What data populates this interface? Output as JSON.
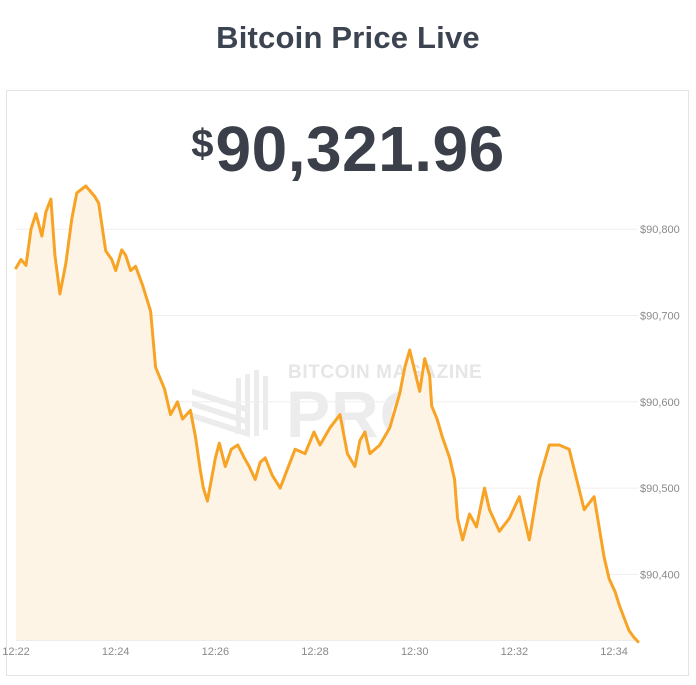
{
  "page": {
    "title": "Bitcoin Price Live"
  },
  "price": {
    "currency_symbol": "$",
    "value": "90,321.96"
  },
  "watermark": {
    "top": "BITCOIN MAGAZINE",
    "main": "PRO"
  },
  "colors": {
    "line": "#f7a325",
    "fill": "#fef4e6",
    "grid": "#efefef",
    "tick_text": "#8a8a8a"
  },
  "chart_data": {
    "type": "area",
    "title": "",
    "xlabel": "",
    "ylabel": "",
    "x_ticks": [
      "12:22",
      "12:24",
      "12:26",
      "12:28",
      "12:30",
      "12:32",
      "12:34"
    ],
    "y_ticks": [
      90400,
      90500,
      90600,
      90700,
      90800
    ],
    "y_tick_labels": [
      "$90,400",
      "$90,500",
      "$90,600",
      "$90,700",
      "$90,800"
    ],
    "xlim_minutes": [
      0,
      12.48
    ],
    "ylim": [
      90324,
      90857
    ],
    "y_axis_position": "right",
    "grid": true,
    "series": [
      {
        "x_minutes": [
          0.0,
          0.1,
          0.2,
          0.3,
          0.4,
          0.52,
          0.6,
          0.7,
          0.78,
          0.88,
          1.0,
          1.12,
          1.22,
          1.4,
          1.58,
          1.66,
          1.8,
          1.92,
          2.0,
          2.12,
          2.2,
          2.3,
          2.4,
          2.54,
          2.7,
          2.8,
          2.98,
          3.1,
          3.24,
          3.34,
          3.5,
          3.6,
          3.7,
          3.76,
          3.84,
          4.0,
          4.08,
          4.2,
          4.32,
          4.45,
          4.58,
          4.68,
          4.8,
          4.9,
          5.0,
          5.14,
          5.3,
          5.4,
          5.6,
          5.8,
          5.98,
          6.1,
          6.3,
          6.5,
          6.65,
          6.8,
          6.9,
          7.0,
          7.1,
          7.3,
          7.5,
          7.7,
          7.8,
          7.9,
          8.1,
          8.2,
          8.3,
          8.34,
          8.45,
          8.55,
          8.7,
          8.8,
          8.86,
          8.96,
          9.1,
          9.24,
          9.4,
          9.5,
          9.7,
          9.9,
          10.1,
          10.3,
          10.5,
          10.7,
          10.9,
          11.1,
          11.4,
          11.6,
          11.8,
          11.9,
          12.02,
          12.1,
          12.2,
          12.3,
          12.4,
          12.48
        ],
        "values": [
          90755,
          90765,
          90758,
          90800,
          90818,
          90792,
          90820,
          90835,
          90770,
          90725,
          90760,
          90812,
          90842,
          90850,
          90838,
          90830,
          90775,
          90765,
          90752,
          90776,
          90770,
          90752,
          90757,
          90735,
          90705,
          90640,
          90615,
          90585,
          90600,
          90580,
          90590,
          90560,
          90520,
          90500,
          90485,
          90535,
          90552,
          90525,
          90545,
          90550,
          90535,
          90525,
          90510,
          90530,
          90535,
          90515,
          90500,
          90515,
          90545,
          90540,
          90565,
          90550,
          90570,
          90585,
          90540,
          90525,
          90555,
          90565,
          90540,
          90550,
          90570,
          90610,
          90640,
          90660,
          90612,
          90650,
          90630,
          90595,
          90580,
          90560,
          90535,
          90510,
          90465,
          90440,
          90470,
          90455,
          90500,
          90475,
          90450,
          90465,
          90490,
          90440,
          90510,
          90550,
          90550,
          90545,
          90475,
          90490,
          90420,
          90395,
          90380,
          90365,
          90350,
          90335,
          90327,
          90322
        ]
      }
    ]
  }
}
